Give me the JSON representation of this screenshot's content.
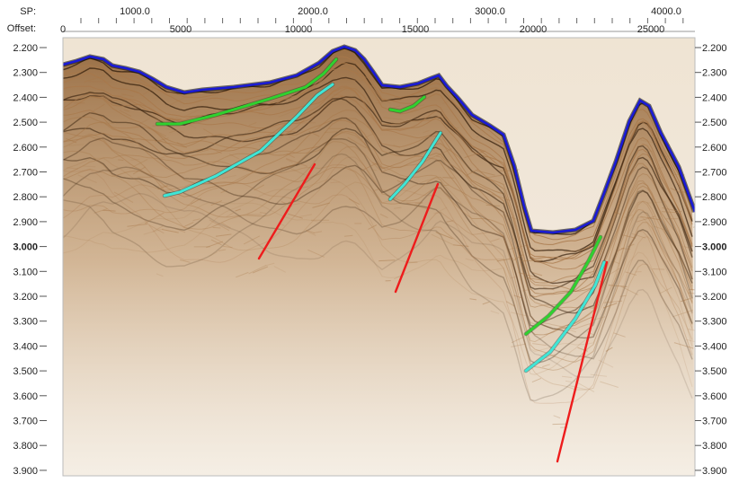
{
  "header": {
    "sp_label": "SP:",
    "offset_label": "Offset:",
    "sp_ticks": [
      "1000.0",
      "2000.0",
      "3000.0",
      "4000.0"
    ],
    "offset_ticks": [
      "0",
      "5000",
      "10000",
      "15000",
      "20000",
      "25000"
    ]
  },
  "time_axis": {
    "ticks": [
      "2.200",
      "2.300",
      "2.400",
      "2.500",
      "2.600",
      "2.700",
      "2.800",
      "2.900",
      "3.000",
      "3.100",
      "3.200",
      "3.300",
      "3.400",
      "3.500",
      "3.600",
      "3.700",
      "3.800",
      "3.900"
    ],
    "bold_tick": "3.000"
  },
  "colors": {
    "seafloor": "#1a1ad6",
    "green_horizon": "#2fd12f",
    "cyan_horizon": "#3fe6d6",
    "fault": "#ee1c1c",
    "seismic_dark": "#3a2410",
    "seismic_mid": "#a8784a",
    "seismic_light": "#f3eadd"
  }
}
